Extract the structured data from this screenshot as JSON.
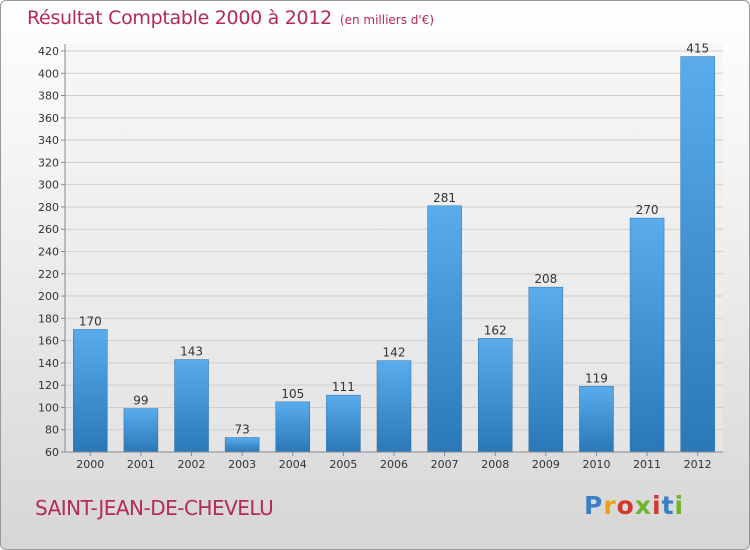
{
  "title": "Résultat Comptable 2000 à 2012",
  "subtitle": "(en milliers d'€)",
  "commune": "SAINT-JEAN-DE-CHEVELU",
  "logo": {
    "letters": [
      "P",
      "r",
      "o",
      "x",
      "i",
      "t",
      "i"
    ],
    "colors": [
      "#3a7fc3",
      "#e8a21a",
      "#d0392b",
      "#6fb52c",
      "#d0392b",
      "#3a7fc3",
      "#6fb52c"
    ]
  },
  "colors": {
    "bar_light": "#5aacec",
    "bar_dark": "#2a78b8",
    "text_accent": "#b5285a",
    "grid": "#cfcfcf"
  },
  "chart_data": {
    "type": "bar",
    "title": "Résultat Comptable 2000 à 2012",
    "xlabel": "",
    "ylabel": "",
    "categories": [
      "2000",
      "2001",
      "2002",
      "2003",
      "2004",
      "2005",
      "2006",
      "2007",
      "2008",
      "2009",
      "2010",
      "2011",
      "2012"
    ],
    "values": [
      170,
      99,
      143,
      73,
      105,
      111,
      142,
      281,
      162,
      208,
      119,
      270,
      415
    ],
    "ylim": [
      60,
      420
    ],
    "yticks": [
      60,
      80,
      100,
      120,
      140,
      160,
      180,
      200,
      220,
      240,
      260,
      280,
      300,
      320,
      340,
      360,
      380,
      400,
      420
    ],
    "grid": true
  }
}
